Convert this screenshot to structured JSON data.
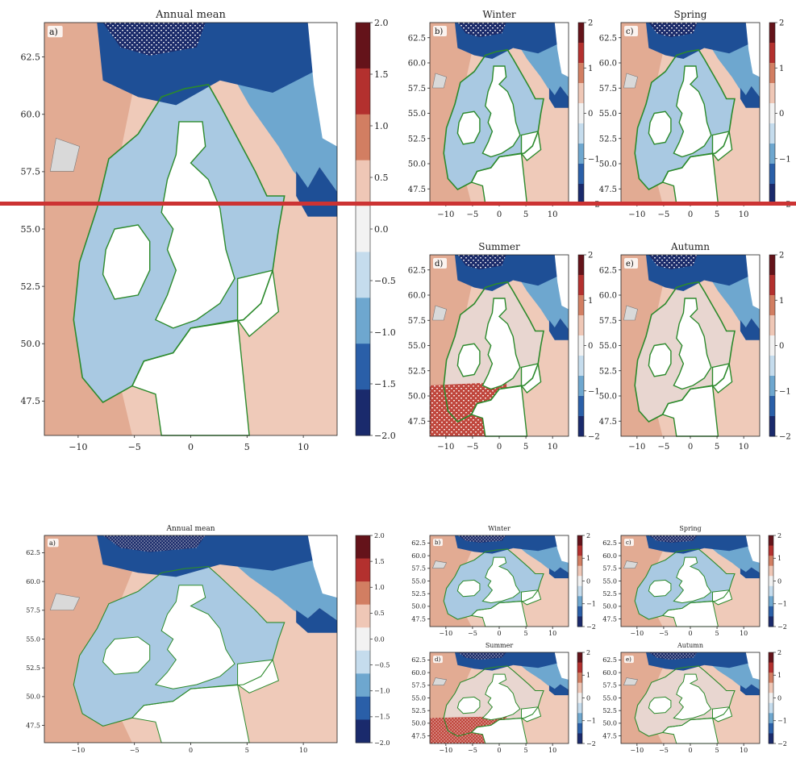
{
  "colors": {
    "sea_warm": "#e2ab93",
    "sea_warm_light": "#efcab9",
    "sea_cool": "#6ea7cf",
    "sea_deep_blue": "#1e4f96",
    "sea_dark": "#1c2c6b",
    "land": "#ffffff",
    "shelf_line": "#2c8a2c",
    "divider": "#cc3333",
    "contour": "#7a7a7a"
  },
  "colormap": [
    "#1a2a6c",
    "#2a5fa8",
    "#6ea7cf",
    "#c5dced",
    "#f2f2f2",
    "#efc7b6",
    "#d27e62",
    "#b3302e",
    "#64131a"
  ],
  "upper": {
    "annual": {
      "title": "Annual mean",
      "label": "a)",
      "yticks": [
        "62.5",
        "60.0",
        "57.5",
        "55.0",
        "52.5",
        "50.0",
        "47.5"
      ],
      "xticks": [
        "−10",
        "−5",
        "0",
        "5",
        "10"
      ],
      "cbar_ticks": [
        "2.0",
        "1.5",
        "1.0",
        "0.5",
        "0.0",
        "−0.5",
        "−1.0",
        "−1.5",
        "−2.0"
      ]
    },
    "panels": [
      {
        "title": "Winter",
        "label": "b)"
      },
      {
        "title": "Spring",
        "label": "c)"
      },
      {
        "title": "Summer",
        "label": "d)"
      },
      {
        "title": "Autumn",
        "label": "e)"
      }
    ],
    "small_yticks": [
      "62.5",
      "60.0",
      "57.5",
      "55.0",
      "52.5",
      "50.0",
      "47.5"
    ],
    "small_xticks": [
      "−10",
      "−5",
      "0",
      "5",
      "10"
    ],
    "small_cbar_ticks": [
      "2",
      "1",
      "0",
      "−1",
      "−2"
    ]
  },
  "lower": {
    "annual": {
      "title": "Annual mean",
      "label": "a)",
      "yticks": [
        "62.5",
        "60.0",
        "57.5",
        "55.0",
        "52.5",
        "50.0",
        "47.5"
      ],
      "xticks": [
        "−10",
        "−5",
        "0",
        "5",
        "10"
      ],
      "cbar_ticks": [
        "2.0",
        "1.5",
        "1.0",
        "0.5",
        "0.0",
        "−0.5",
        "−1.0",
        "−1.5",
        "−2.0"
      ]
    },
    "panels": [
      {
        "title": "Winter",
        "label": "b)"
      },
      {
        "title": "Spring",
        "label": "c)"
      },
      {
        "title": "Summer",
        "label": "d)"
      },
      {
        "title": "Autumn",
        "label": "e)"
      }
    ],
    "small_yticks": [
      "62.5",
      "60.0",
      "57.5",
      "55.0",
      "52.5",
      "50.0",
      "47.5"
    ],
    "small_xticks": [
      "−10",
      "−5",
      "0",
      "5",
      "10"
    ],
    "small_cbar_ticks": [
      "2",
      "1",
      "0",
      "−1",
      "−2"
    ]
  }
}
